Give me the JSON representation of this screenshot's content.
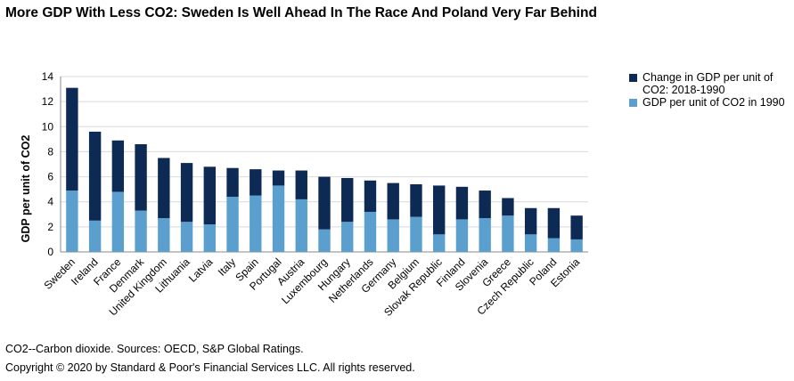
{
  "title": "More GDP With Less CO2: Sweden Is Well Ahead In The Race And Poland Very Far Behind",
  "footer": {
    "note": "CO2--Carbon dioxide. Sources: OECD,  S&P Global Ratings.",
    "copyright": "Copyright © 2020 by Standard & Poor's Financial Services LLC. All rights reserved."
  },
  "colors": {
    "change": "#0d2a55",
    "base": "#5a9fce",
    "grid": "#d9d9d9",
    "axis": "#888888"
  },
  "chart_data": {
    "type": "bar",
    "stacked": true,
    "title": "More GDP With Less CO2: Sweden Is Well Ahead In The Race And Poland Very Far Behind",
    "ylabel": "GDP per unit of CO2",
    "xlabel": "",
    "ylim": [
      0,
      14
    ],
    "yticks": [
      0,
      2,
      4,
      6,
      8,
      10,
      12,
      14
    ],
    "grid": true,
    "legend_position": "right",
    "categories": [
      "Sweden",
      "Ireland",
      "France",
      "Denmark",
      "United Kingdom",
      "Lithuania",
      "Latvia",
      "Italy",
      "Spain",
      "Portugal",
      "Austria",
      "Luxembourg",
      "Hungary",
      "Netherlands",
      "Germany",
      "Belgium",
      "Slovak Republic",
      "Finland",
      "Slovenia",
      "Greece",
      "Czech Republic",
      "Poland",
      "Estonia"
    ],
    "series": [
      {
        "name": "GDP per unit of CO2 in 1990",
        "color": "#5a9fce",
        "values": [
          4.9,
          2.5,
          4.8,
          3.3,
          2.7,
          2.4,
          2.2,
          4.4,
          4.5,
          5.3,
          4.2,
          1.8,
          2.4,
          3.2,
          2.6,
          2.8,
          1.4,
          2.6,
          2.7,
          2.9,
          1.4,
          1.1,
          1.0
        ]
      },
      {
        "name": "Change in GDP per unit of CO2: 2018-1990",
        "color": "#0d2a55",
        "values": [
          8.2,
          7.1,
          4.1,
          5.3,
          4.8,
          4.7,
          4.6,
          2.3,
          2.1,
          1.2,
          2.3,
          4.2,
          3.5,
          2.5,
          2.9,
          2.6,
          3.9,
          2.6,
          2.2,
          1.4,
          2.1,
          2.4,
          1.9
        ]
      }
    ]
  }
}
